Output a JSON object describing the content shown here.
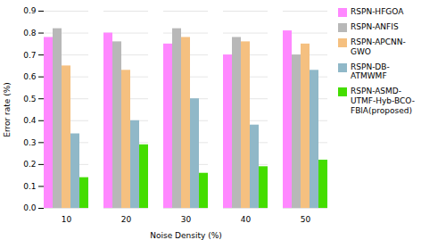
{
  "chart_data": {
    "type": "bar",
    "categories": [
      "10",
      "20",
      "30",
      "40",
      "50"
    ],
    "series": [
      {
        "name": "RSPN-HFGOA",
        "color": "#ff88ff",
        "values": [
          0.78,
          0.8,
          0.75,
          0.7,
          0.81
        ]
      },
      {
        "name": "RSPN-ANFIS",
        "color": "#b8b8b8",
        "values": [
          0.82,
          0.76,
          0.82,
          0.78,
          0.7
        ]
      },
      {
        "name": "RSPN-APCNN-\nGWO",
        "color": "#f5c080",
        "values": [
          0.65,
          0.63,
          0.78,
          0.76,
          0.75
        ]
      },
      {
        "name": "RSPN-DB-\nATMWMF",
        "color": "#90b8c8",
        "values": [
          0.34,
          0.4,
          0.5,
          0.38,
          0.63
        ]
      },
      {
        "name": "RSPN-ASMD-\nUTMF-Hyb-BCO-\nFBlA(proposed)",
        "color": "#44dd00",
        "values": [
          0.14,
          0.29,
          0.16,
          0.19,
          0.22
        ]
      }
    ],
    "xlabel": "Noise Density (%)",
    "ylabel": "Error rate (%)",
    "ylim": [
      0,
      0.9
    ],
    "yticks": [
      {
        "value": 0,
        "label": "0.0"
      },
      0.1,
      0.2,
      0.3,
      0.4,
      0.5,
      0.6,
      0.7,
      0.8,
      0.9
    ],
    "grid": true,
    "legend": "right"
  }
}
